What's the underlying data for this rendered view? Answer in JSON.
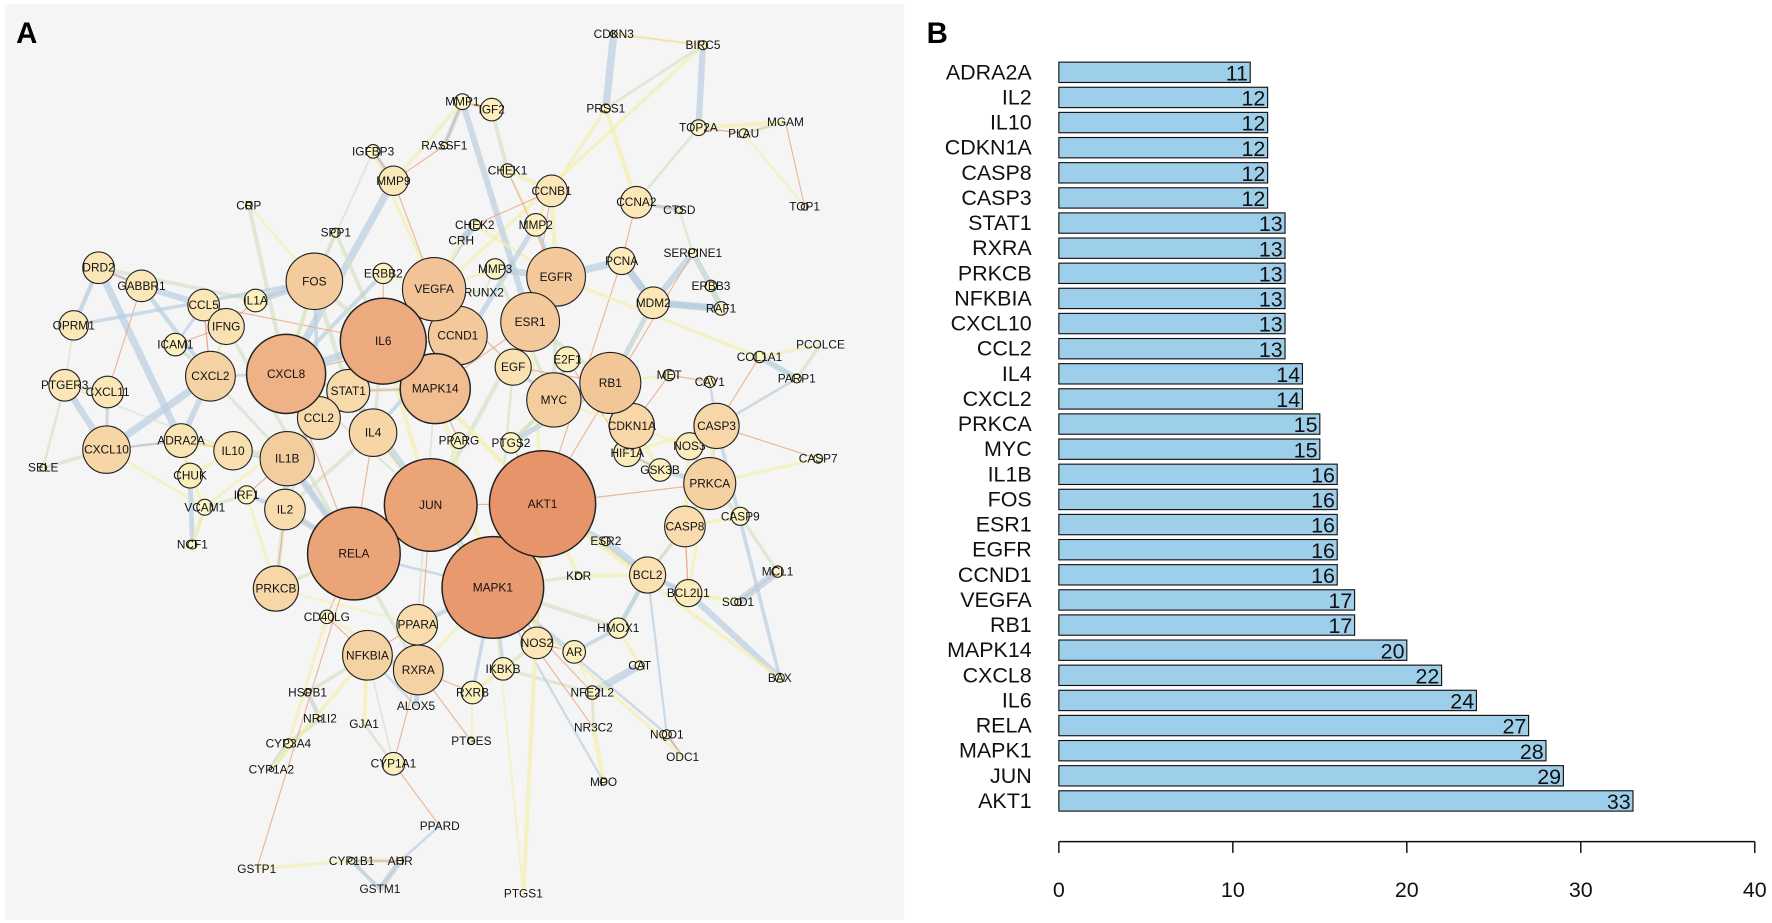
{
  "panels": {
    "a_label": "A",
    "b_label": "B"
  },
  "network": {
    "nodes": [
      "CDKN3",
      "BIRC5",
      "MMP1",
      "IGF2",
      "PRSS1",
      "TOP2A",
      "PLAU",
      "MGAM",
      "IGFBP3",
      "RASSF1",
      "CHEK1",
      "MMP9",
      "CCNB1",
      "CCNA2",
      "CTSD",
      "TOP1",
      "CRP",
      "SPP1",
      "CHEK2",
      "MMP2",
      "CRH",
      "PCNA",
      "SERPINE1",
      "DRD2",
      "GABBR1",
      "ERBB2",
      "FOS",
      "VEGFA",
      "MMP3",
      "RUNX2",
      "EGFR",
      "ERBB3",
      "MDM2",
      "RAF1",
      "CCL5",
      "IL1A",
      "IFNG",
      "ESR1",
      "IL6",
      "CCND1",
      "OPRM1",
      "ICAM1",
      "COL1A1",
      "PCOLCE",
      "CXCL2",
      "CXCL8",
      "EGF",
      "E2F1",
      "MAPK14",
      "RB1",
      "MET",
      "CAV1",
      "PARP1",
      "PTGER3",
      "CXCL11",
      "STAT1",
      "MYC",
      "CCL2",
      "IL4",
      "CDKN1A",
      "CASP3",
      "CXCL10",
      "ADRA2A",
      "IL10",
      "IL1B",
      "PPARG",
      "PTGS2",
      "HIF1A",
      "NOS3",
      "CASP7",
      "SELE",
      "CHUK",
      "GSK3B",
      "PRKCA",
      "IRF1",
      "VCAM1",
      "IL2",
      "JUN",
      "AKT1",
      "CASP9",
      "CASP8",
      "ESR2",
      "NCF1",
      "RELA",
      "MAPK1",
      "KDR",
      "BCL2",
      "BCL2L1",
      "MCL1",
      "SOD1",
      "PRKCB",
      "CD40LG",
      "PPARA",
      "HMOX1",
      "NOS2",
      "AR",
      "CAT",
      "BAX",
      "NFKBIA",
      "RXRA",
      "IKBKB",
      "HSPB1",
      "RXRB",
      "NFE2L2",
      "ALOX5",
      "NR1I2",
      "GJA1",
      "NR3C2",
      "NQO1",
      "CYP3A4",
      "PTGES",
      "ODC1",
      "CYP1A2",
      "CYP1A1",
      "MPO",
      "PPARD",
      "GSTP1",
      "CYP1B1",
      "AHR",
      "GSTM1",
      "PTGS1"
    ],
    "colors": {
      "low": "#fdf5c4",
      "high": "#e8946a",
      "edge_blue": "#b9cfe0",
      "edge_orange": "#eaa57e",
      "edge_yellow": "#f3f0b0",
      "edge_green": "#d5e2c7",
      "background": "#f5f5f5"
    }
  },
  "chart_data": {
    "type": "bar",
    "orientation": "horizontal",
    "categories": [
      "ADRA2A",
      "IL2",
      "IL10",
      "CDKN1A",
      "CASP8",
      "CASP3",
      "STAT1",
      "RXRA",
      "PRKCB",
      "NFKBIA",
      "CXCL10",
      "CCL2",
      "IL4",
      "CXCL2",
      "PRKCA",
      "MYC",
      "IL1B",
      "FOS",
      "ESR1",
      "EGFR",
      "CCND1",
      "VEGFA",
      "RB1",
      "MAPK14",
      "CXCL8",
      "IL6",
      "RELA",
      "MAPK1",
      "JUN",
      "AKT1"
    ],
    "values": [
      11,
      12,
      12,
      12,
      12,
      12,
      13,
      13,
      13,
      13,
      13,
      13,
      14,
      14,
      15,
      15,
      16,
      16,
      16,
      16,
      16,
      17,
      17,
      20,
      22,
      24,
      27,
      28,
      29,
      33
    ],
    "xlim": [
      0,
      40
    ],
    "xticks": [
      "0",
      "10",
      "20",
      "30",
      "40"
    ],
    "bar_color": "#9ecfea",
    "title": "",
    "xlabel": "",
    "ylabel": ""
  }
}
